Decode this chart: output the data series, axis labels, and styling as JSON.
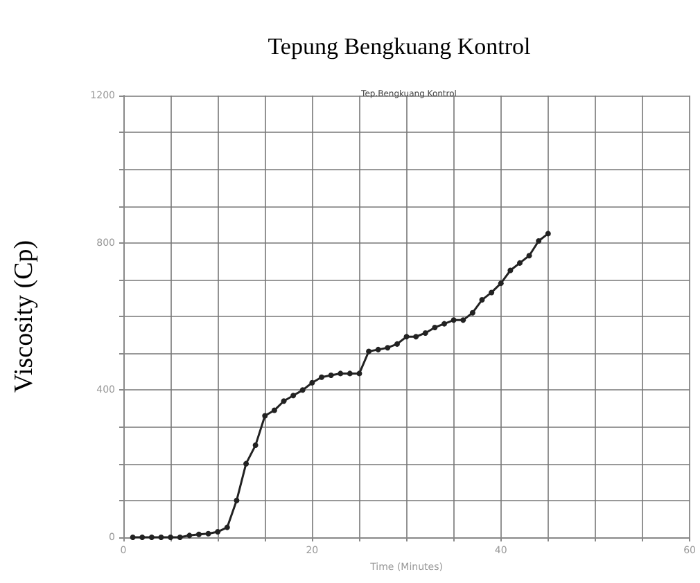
{
  "chart_data": {
    "type": "line",
    "title": "Tepung Bengkuang Kontrol",
    "subtitle": "Tep.Bengkuang Kontrol",
    "xlabel": "Time (Minutes)",
    "ylabel": "Viscosity (Cp)",
    "x": [
      1,
      2,
      3,
      4,
      5,
      6,
      7,
      8,
      9,
      10,
      11,
      12,
      13,
      14,
      15,
      16,
      17,
      18,
      19,
      20,
      21,
      22,
      23,
      24,
      25,
      26,
      27,
      28,
      29,
      30,
      31,
      32,
      33,
      34,
      35,
      36,
      37,
      38,
      39,
      40,
      41,
      42,
      43,
      44,
      45
    ],
    "series": [
      {
        "color": "#222222",
        "values": [
          0,
          0,
          0,
          0,
          0,
          0,
          5,
          8,
          10,
          15,
          27,
          100,
          200,
          250,
          330,
          345,
          370,
          385,
          400,
          420,
          435,
          440,
          445,
          445,
          445,
          505,
          510,
          515,
          525,
          545,
          545,
          555,
          570,
          580,
          590,
          590,
          610,
          645,
          665,
          690,
          725,
          745,
          765,
          805,
          825
        ]
      }
    ],
    "xlim": [
      0,
      60
    ],
    "ylim": [
      0,
      1200
    ],
    "xticks": [
      0,
      {
        "value": 5,
        "label": null
      },
      {
        "value": 10,
        "label": null
      },
      {
        "value": 15,
        "label": null
      },
      20,
      {
        "value": 25,
        "label": null
      },
      {
        "value": 30,
        "label": null
      },
      {
        "value": 35,
        "label": null
      },
      40,
      {
        "value": 45,
        "label": null
      },
      {
        "value": 50,
        "label": null
      },
      {
        "value": 55,
        "label": null
      },
      60
    ],
    "yticks": [
      0,
      {
        "value": 100,
        "label": null
      },
      {
        "value": 200,
        "label": null
      },
      {
        "value": 300,
        "label": null
      },
      400,
      {
        "value": 500,
        "label": null
      },
      {
        "value": 600,
        "label": null
      },
      {
        "value": 700,
        "label": null
      },
      800,
      {
        "value": 900,
        "label": null
      },
      {
        "value": 1000,
        "label": null
      },
      {
        "value": 1100,
        "label": null
      },
      1200
    ],
    "grid": true,
    "marker": "circle",
    "line_style": "solid"
  }
}
